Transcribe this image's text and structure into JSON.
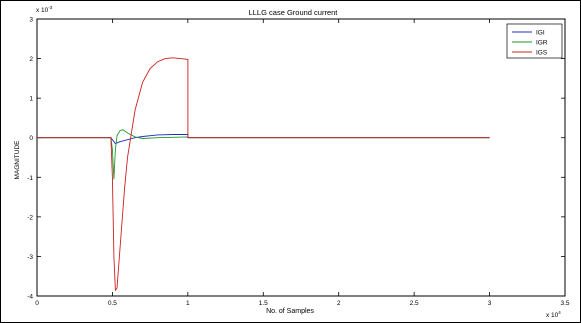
{
  "chart_data": {
    "type": "line",
    "title": "LLLG case Ground current",
    "xlabel": "No. of Samples",
    "ylabel": "MAGNITUDE",
    "x_exponent_label": "x 10",
    "x_exponent_power": "4",
    "y_exponent_label": "x 10",
    "y_exponent_power": "-3",
    "xlim": [
      0,
      3.5
    ],
    "ylim": [
      -4,
      3
    ],
    "x_ticks": [
      0,
      0.5,
      1,
      1.5,
      2,
      2.5,
      3,
      3.5
    ],
    "x_tick_labels": [
      "0",
      "0.5",
      "1",
      "1.5",
      "2",
      "2.5",
      "3",
      "3.5"
    ],
    "y_ticks": [
      -4,
      -3,
      -2,
      -1,
      0,
      1,
      2,
      3
    ],
    "y_tick_labels": [
      "-4",
      "-3",
      "-2",
      "-1",
      "0",
      "1",
      "2",
      "3"
    ],
    "legend_position": "top-right",
    "series": [
      {
        "name": "IGI",
        "color": "#1f2fbf",
        "x": [
          0,
          0.49,
          0.5,
          0.52,
          0.55,
          0.6,
          0.65,
          0.7,
          0.8,
          0.9,
          1.0,
          1.0,
          1.05,
          2.0,
          3.0
        ],
        "y": [
          0,
          0,
          -0.05,
          -0.15,
          -0.1,
          -0.05,
          0.0,
          0.03,
          0.07,
          0.08,
          0.08,
          0.0,
          0.0,
          0.0,
          0.0
        ]
      },
      {
        "name": "IGR",
        "color": "#1f9a2a",
        "x": [
          0,
          0.49,
          0.5,
          0.51,
          0.52,
          0.53,
          0.55,
          0.57,
          0.6,
          0.65,
          0.7,
          0.8,
          0.9,
          1.0,
          1.0,
          1.05,
          2.0,
          3.0
        ],
        "y": [
          0,
          0,
          -0.3,
          -1.05,
          -0.3,
          0.05,
          0.18,
          0.2,
          0.12,
          0.02,
          -0.02,
          0.0,
          0.01,
          0.02,
          0.0,
          0.0,
          0.0,
          0.0
        ]
      },
      {
        "name": "IGS",
        "color": "#cc2020",
        "x": [
          0,
          0.49,
          0.5,
          0.51,
          0.52,
          0.53,
          0.55,
          0.58,
          0.6,
          0.65,
          0.7,
          0.75,
          0.8,
          0.85,
          0.9,
          0.95,
          1.0,
          1.0,
          1.05,
          2.0,
          3.0
        ],
        "y": [
          0,
          0,
          -1.0,
          -3.0,
          -3.85,
          -3.8,
          -2.8,
          -1.3,
          -0.5,
          0.7,
          1.4,
          1.75,
          1.92,
          2.0,
          2.02,
          2.0,
          1.98,
          0.0,
          0.0,
          0.0,
          0.0
        ]
      }
    ]
  }
}
